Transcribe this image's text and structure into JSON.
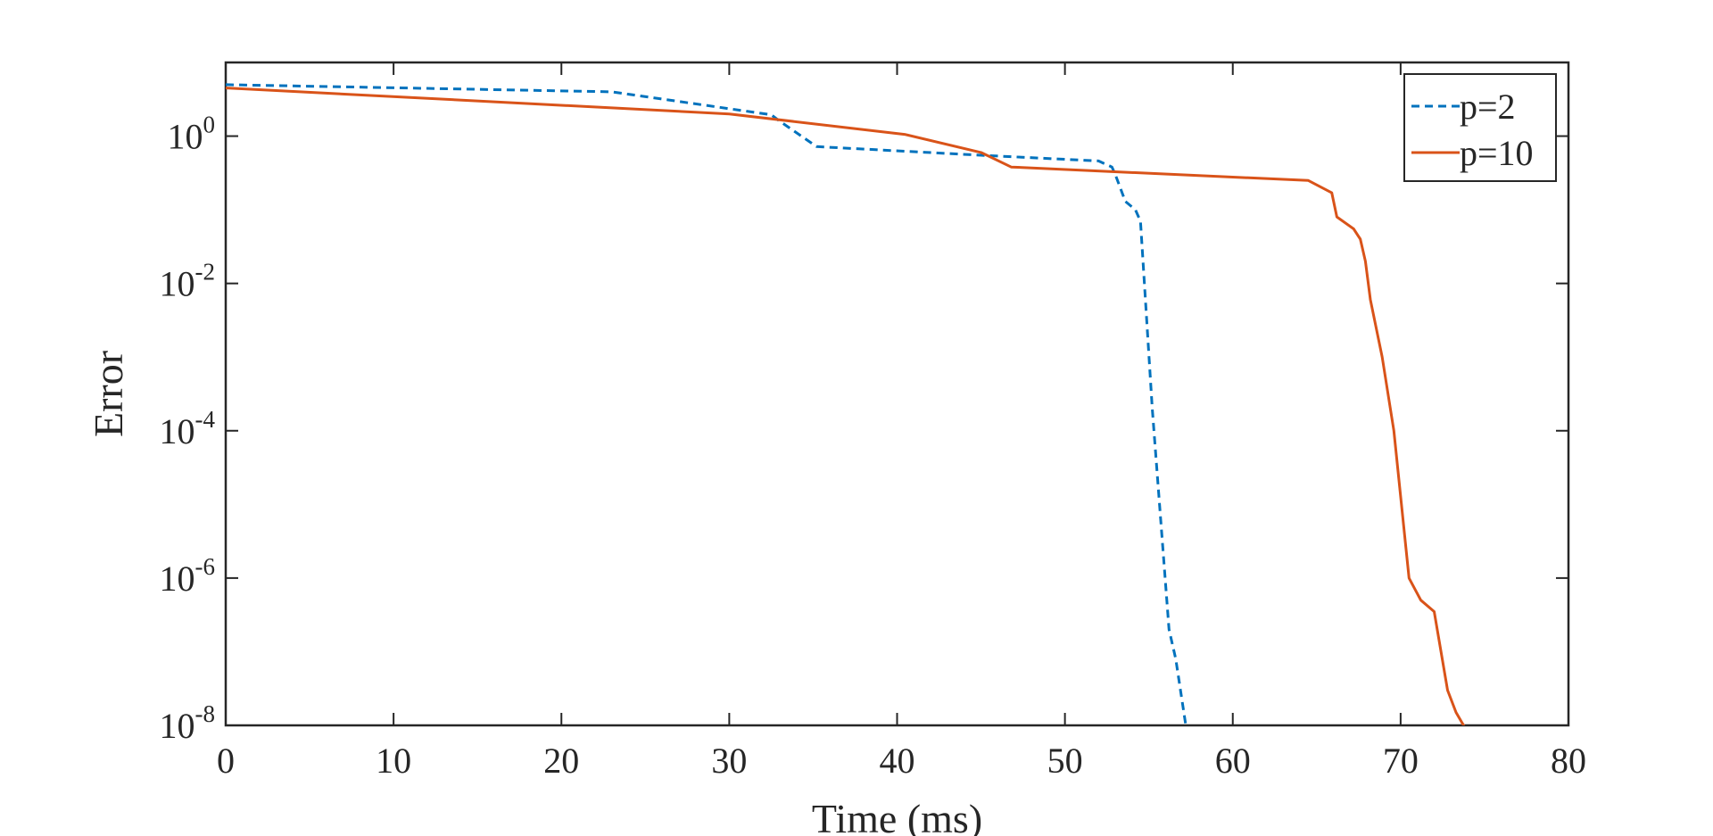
{
  "chart_data": {
    "type": "line",
    "xlabel": "Time (ms)",
    "ylabel": "Error",
    "xlim": [
      0,
      80
    ],
    "ylim": [
      1e-08,
      10
    ],
    "yscale": "log",
    "grid": false,
    "legend_position": "top-right",
    "xticks": [
      0,
      10,
      20,
      30,
      40,
      50,
      60,
      70,
      80
    ],
    "yticks": [
      {
        "base": "10",
        "exp": "0",
        "value": 1
      },
      {
        "base": "10",
        "exp": "-2",
        "value": 0.01
      },
      {
        "base": "10",
        "exp": "-4",
        "value": 0.0001
      },
      {
        "base": "10",
        "exp": "-6",
        "value": 1e-06
      },
      {
        "base": "10",
        "exp": "-8",
        "value": 1e-08
      }
    ],
    "series": [
      {
        "name": "p=2",
        "color": "#0072BD",
        "dash": true,
        "points": [
          [
            0,
            5.0
          ],
          [
            23,
            4.0
          ],
          [
            32.5,
            1.95
          ],
          [
            33,
            1.6
          ],
          [
            35.2,
            0.72
          ],
          [
            45,
            0.55
          ],
          [
            52,
            0.46
          ],
          [
            52.8,
            0.38
          ],
          [
            53,
            0.3
          ],
          [
            53.6,
            0.13
          ],
          [
            54.2,
            0.1
          ],
          [
            54.5,
            0.07
          ],
          [
            55.2,
            0.0002
          ],
          [
            56.2,
            2e-07
          ],
          [
            56.6,
            8e-08
          ],
          [
            57.2,
            1e-08
          ]
        ]
      },
      {
        "name": "p=10",
        "color": "#D95319",
        "dash": false,
        "points": [
          [
            0,
            4.5
          ],
          [
            30,
            2.0
          ],
          [
            40.5,
            1.05
          ],
          [
            45,
            0.6
          ],
          [
            46.8,
            0.38
          ],
          [
            64.5,
            0.25
          ],
          [
            65.9,
            0.17
          ],
          [
            66.2,
            0.08
          ],
          [
            67.2,
            0.055
          ],
          [
            67.6,
            0.04
          ],
          [
            67.9,
            0.02
          ],
          [
            68.2,
            0.006
          ],
          [
            68.9,
            0.001
          ],
          [
            69.6,
            0.0001
          ],
          [
            70.5,
            1e-06
          ],
          [
            71.2,
            5e-07
          ],
          [
            72,
            3.5e-07
          ],
          [
            72.8,
            3e-08
          ],
          [
            73.3,
            1.5e-08
          ],
          [
            74,
            8e-09
          ]
        ]
      }
    ]
  }
}
